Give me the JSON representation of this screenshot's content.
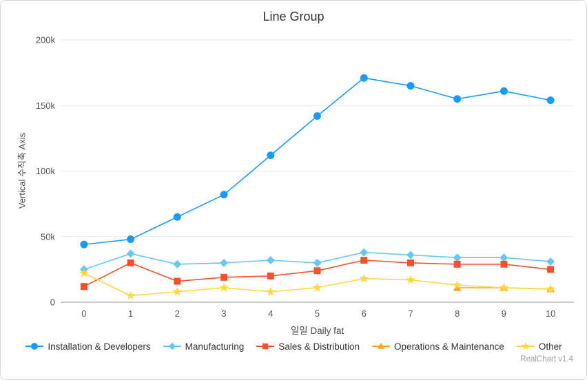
{
  "chart": {
    "title": "Line Group",
    "x_axis_title": "일일 Daily fat",
    "y_axis_title": "Vertical 수직축 Axis",
    "watermark": "RealChart v1.4"
  },
  "chart_data": {
    "type": "line",
    "title": "Line Group",
    "xlabel": "일일 Daily fat",
    "ylabel": "Vertical 수직축 Axis",
    "categories": [
      "0",
      "1",
      "2",
      "3",
      "4",
      "5",
      "6",
      "7",
      "8",
      "9",
      "10"
    ],
    "y_ticks": [
      0,
      50000,
      100000,
      150000,
      200000
    ],
    "y_tick_labels": [
      "0",
      "50k",
      "100k",
      "150k",
      "200k"
    ],
    "ylim": [
      0,
      200000
    ],
    "grid": "horizontal",
    "legend_position": "bottom",
    "colors": {
      "gridline": "#e9e9e9",
      "axis_line": "#9a9a9a"
    },
    "series": [
      {
        "name": "Installation & Developers",
        "color": "#189bfa",
        "marker": "circle",
        "values": [
          44000,
          48000,
          65000,
          82000,
          112000,
          142000,
          171000,
          165000,
          155000,
          161000,
          154000
        ]
      },
      {
        "name": "Manufacturing",
        "color": "#62c8f4",
        "marker": "diamond",
        "values": [
          25000,
          37000,
          29000,
          30000,
          32000,
          30000,
          38000,
          36000,
          34000,
          34000,
          31000
        ]
      },
      {
        "name": "Sales & Distribution",
        "color": "#f4512c",
        "marker": "square",
        "values": [
          12000,
          30000,
          16000,
          19000,
          20000,
          24000,
          32000,
          30000,
          29000,
          29000,
          25000
        ]
      },
      {
        "name": "Operations & Maintenance",
        "color": "#ffa126",
        "marker": "triangle",
        "values": [
          null,
          null,
          null,
          null,
          null,
          null,
          null,
          null,
          11000,
          11000,
          10000
        ]
      },
      {
        "name": "Other",
        "color": "#ffd83d",
        "marker": "star",
        "values": [
          22000,
          5000,
          8000,
          11000,
          8000,
          11000,
          18000,
          17000,
          13000,
          11000,
          10000
        ]
      }
    ]
  }
}
